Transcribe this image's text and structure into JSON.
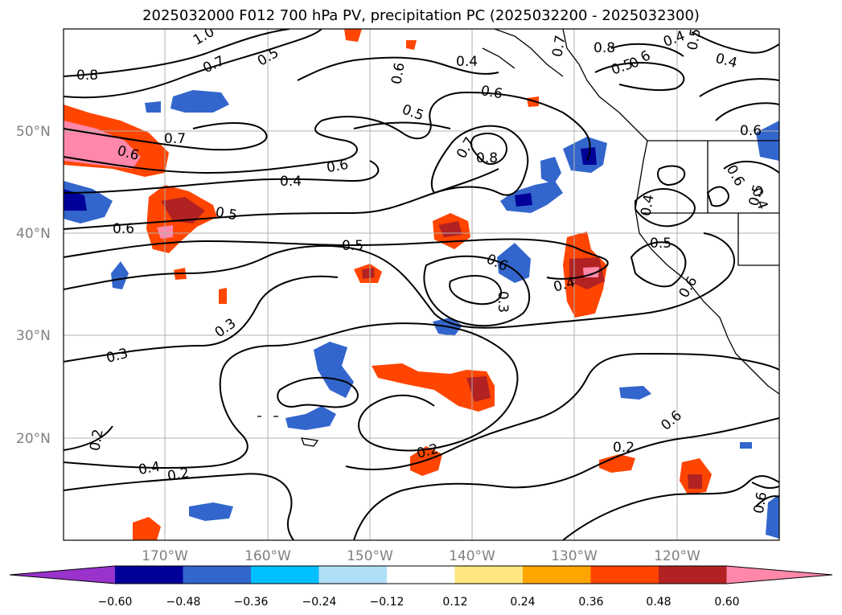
{
  "title": "2025032000 F012 700 hPa PV, precipitation PC (2025032200 - 2025032300)",
  "lat_labels": [
    "50°N",
    "40°N",
    "30°N",
    "20°N"
  ],
  "lon_labels": [
    "170°W",
    "160°W",
    "150°W",
    "140°W",
    "130°W",
    "120°W"
  ],
  "colorbar": {
    "colors": [
      "#9933cc",
      "#000099",
      "#3366cc",
      "#00bfff",
      "#b0e0f8",
      "#ffffff",
      "#ffe680",
      "#ffa500",
      "#ff4500",
      "#b22222",
      "#ff88aa"
    ],
    "ticks": [
      "−0.60",
      "−0.48",
      "−0.36",
      "−0.24",
      "−0.12",
      "0.12",
      "0.24",
      "0.36",
      "0.48",
      "0.60"
    ]
  },
  "contour_labels": [
    "0.8",
    "0.7",
    "0.5",
    "1.0",
    "0.6",
    "0.4",
    "0.7",
    "0.8",
    "0.6",
    "0.5",
    "0.4",
    "0.6",
    "0.7",
    "0.6",
    "0.5",
    "0.8",
    "0.6",
    "0.7",
    "0.6",
    "0.4",
    "0.5",
    "0.6",
    "0.4",
    "0.5",
    "0.5",
    "0.6",
    "0.4",
    "0.5",
    "0.6",
    "0.4",
    "0.6",
    "0.3",
    "0.3",
    "0.3",
    "0.2",
    "0.4",
    "0.2",
    "0.2",
    "0.2",
    "0.6",
    "0.6",
    "0.5",
    "0.4"
  ]
}
